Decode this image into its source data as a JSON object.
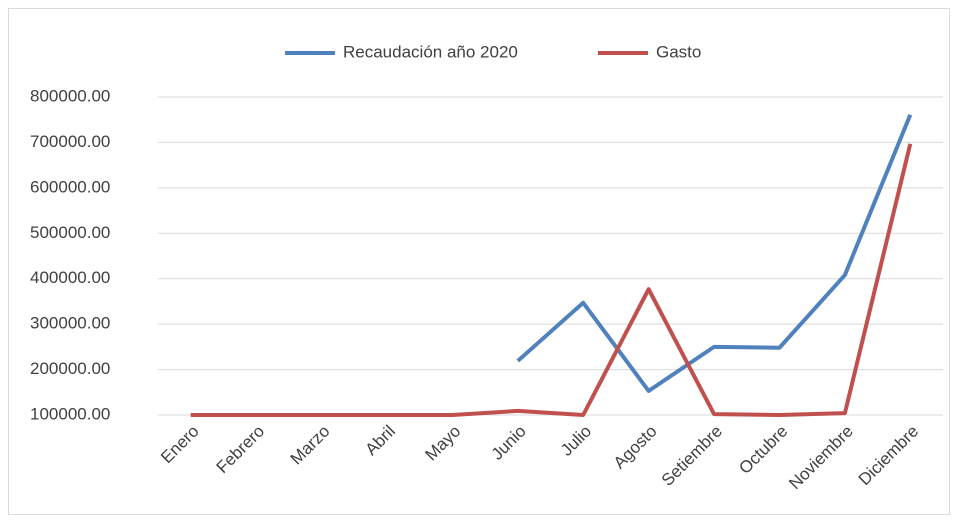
{
  "chart_data": {
    "type": "line",
    "categories": [
      "Enero",
      "Febrero",
      "Marzo",
      "Abril",
      "Mayo",
      "Junio",
      "Julio",
      "Agosto",
      "Setiembre",
      "Octubre",
      "Noviembre",
      "Diciembre"
    ],
    "series": [
      {
        "name": "Recaudación año 2020",
        "color": "#4f81bd",
        "values": [
          null,
          null,
          null,
          null,
          null,
          219000,
          347000,
          153000,
          250000,
          248000,
          408000,
          761000
        ]
      },
      {
        "name": "Gasto",
        "color": "#c0504d",
        "values": [
          100000,
          100000,
          100000,
          100000,
          100000,
          109000,
          100000,
          377000,
          102000,
          100000,
          104000,
          697000
        ]
      }
    ],
    "ylim": [
      100000,
      800000
    ],
    "yticks": [
      {
        "value": 100000,
        "label": "100000.00"
      },
      {
        "value": 200000,
        "label": "200000.00"
      },
      {
        "value": 300000,
        "label": "300000.00"
      },
      {
        "value": 400000,
        "label": "400000.00"
      },
      {
        "value": 500000,
        "label": "500000.00"
      },
      {
        "value": 600000,
        "label": "600000.00"
      },
      {
        "value": 700000,
        "label": "700000.00"
      },
      {
        "value": 800000,
        "label": "800000.00"
      }
    ],
    "grid": true,
    "legend": "top"
  }
}
